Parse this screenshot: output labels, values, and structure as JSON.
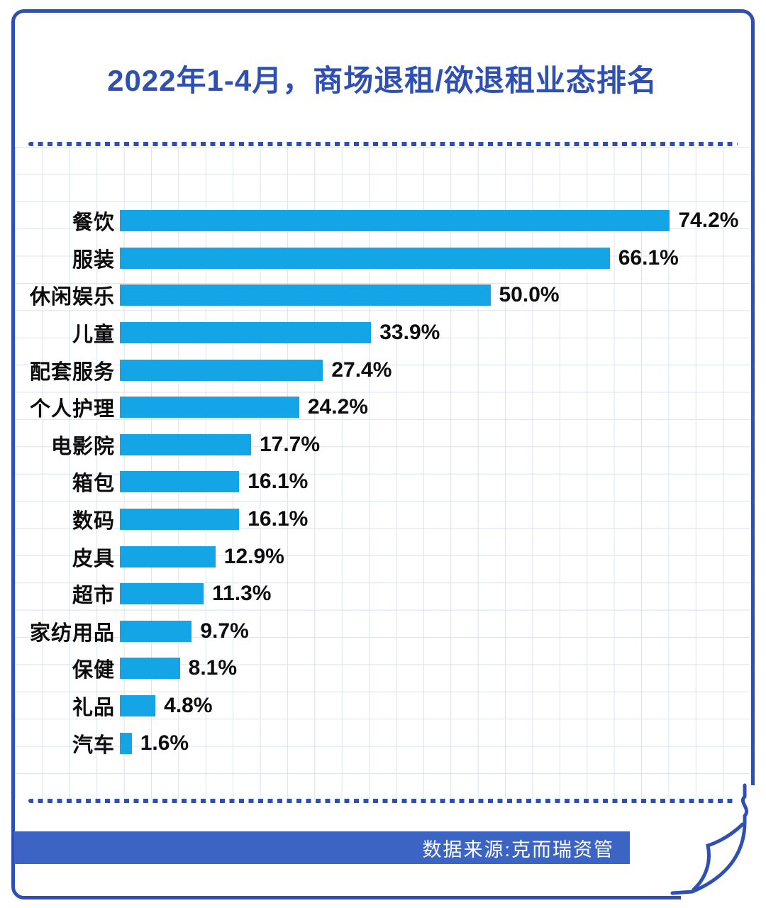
{
  "page": {
    "title": "2022年1-4月，商场退租/欲退租业态排名",
    "source_label": "数据来源:克而瑞资管"
  },
  "colors": {
    "accent_blue": "#2E50B4",
    "bar_blue": "#14A5E6",
    "footer_band_blue": "#3B64C4",
    "grid_line": "#dce2ee",
    "label_black": "#0d0d0d"
  },
  "chart_data": {
    "type": "bar",
    "orientation": "horizontal",
    "title": "2022年1-4月，商场退租/欲退租业态排名",
    "categories": [
      "餐饮",
      "服装",
      "休闲娱乐",
      "儿童",
      "配套服务",
      "个人护理",
      "电影院",
      "箱包",
      "数码",
      "皮具",
      "超市",
      "家纺用品",
      "保健",
      "礼品",
      "汽车"
    ],
    "values": [
      74.2,
      66.1,
      50.0,
      33.9,
      27.4,
      24.2,
      17.7,
      16.1,
      16.1,
      12.9,
      11.3,
      9.7,
      8.1,
      4.8,
      1.6
    ],
    "value_labels": [
      "74.2%",
      "66.1%",
      "50.0%",
      "33.9%",
      "27.4%",
      "24.2%",
      "17.7%",
      "16.1%",
      "16.1%",
      "12.9%",
      "11.3%",
      "9.7%",
      "8.1%",
      "4.8%",
      "1.6%"
    ],
    "unit": "%",
    "xlim": [
      0,
      80
    ],
    "grid": true,
    "legend": "none",
    "source": "数据来源:克而瑞资管"
  }
}
